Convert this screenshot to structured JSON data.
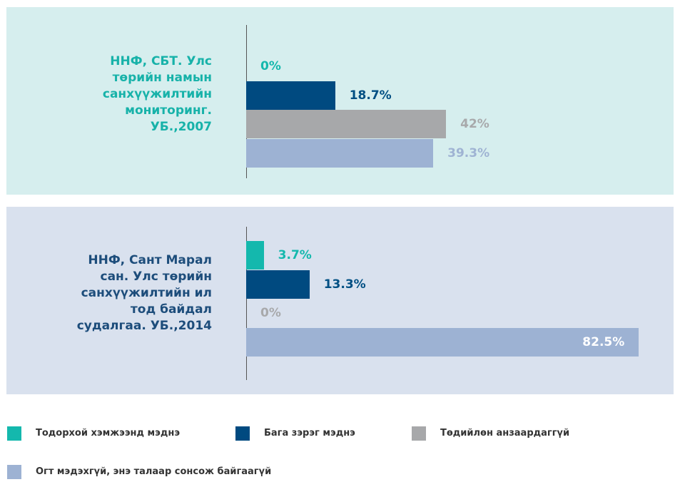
{
  "chart_data": {
    "type": "bar",
    "orientation": "horizontal",
    "categories": [
      "ННФ, СБТ. Улс төрийн намын санхүүжилтийн мониторинг. УБ.,2007",
      "ННФ, Сант Марал сан. Улс төрийн санхүүжилтийн ил тод байдал судалгаа. УБ.,2014"
    ],
    "xlim": [
      0,
      100
    ],
    "series": [
      {
        "name": "Тодорхой хэмжээнд мэднэ",
        "color": "#14b8ad",
        "values": [
          0,
          3.7
        ],
        "value_labels": [
          "0%",
          "3.7%"
        ]
      },
      {
        "name": "Бага зэрэг мэднэ",
        "color": "#004a80",
        "values": [
          18.7,
          13.3
        ],
        "value_labels": [
          "18.7%",
          "13.3%"
        ]
      },
      {
        "name": "Төдийлөн анзаардаггүй",
        "color": "#a7a8aa",
        "values": [
          42,
          0
        ],
        "value_labels": [
          "42%",
          "0%"
        ]
      },
      {
        "name": "Огт мэдэхгүй, энэ талаар сонсож байгаагүй",
        "color": "#9db2d3",
        "values": [
          39.3,
          82.5
        ],
        "value_labels": [
          "39.3%",
          "82.5%"
        ]
      }
    ]
  }
}
